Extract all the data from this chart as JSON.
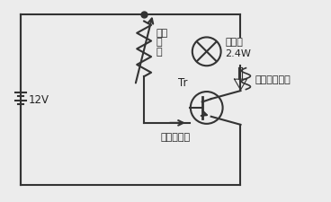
{
  "bg_color": "#ececec",
  "line_color": "#333333",
  "text_color": "#222222",
  "battery_label": "12V",
  "lamp_label": "ランプ\n2.4W",
  "resistor_label": "可変\n抵\n抗",
  "base_current_label": "ベース電流",
  "collector_current_label": "コレクタ電流",
  "tr_label": "Tr"
}
